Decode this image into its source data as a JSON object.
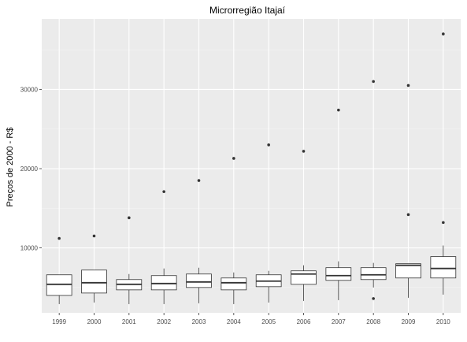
{
  "chart_data": {
    "type": "boxplot",
    "title": "Microrregião  Itajaí",
    "xlabel": "",
    "ylabel": "Preços de 2000 - R$",
    "categories": [
      "1999",
      "2000",
      "2001",
      "2002",
      "2003",
      "2004",
      "2005",
      "2006",
      "2007",
      "2008",
      "2009",
      "2010"
    ],
    "ylim": [
      1800,
      38900
    ],
    "yticks": [
      10000,
      20000,
      30000
    ],
    "ytick_labels": [
      "10000",
      "20000",
      "30000"
    ],
    "grid": true,
    "boxes": [
      {
        "x": "1999",
        "whisker_low": 2900,
        "q1": 4000,
        "median": 5400,
        "q3": 6600,
        "whisker_high": 6600,
        "outliers": [
          11200
        ]
      },
      {
        "x": "2000",
        "whisker_low": 3100,
        "q1": 4300,
        "median": 5600,
        "q3": 7200,
        "whisker_high": 7200,
        "outliers": [
          11500
        ]
      },
      {
        "x": "2001",
        "whisker_low": 2900,
        "q1": 4700,
        "median": 5400,
        "q3": 6000,
        "whisker_high": 6700,
        "outliers": [
          13800
        ]
      },
      {
        "x": "2002",
        "whisker_low": 2900,
        "q1": 4700,
        "median": 5500,
        "q3": 6500,
        "whisker_high": 7400,
        "outliers": [
          17100
        ]
      },
      {
        "x": "2003",
        "whisker_low": 3000,
        "q1": 5000,
        "median": 5700,
        "q3": 6700,
        "whisker_high": 7500,
        "outliers": [
          18500
        ]
      },
      {
        "x": "2004",
        "whisker_low": 2900,
        "q1": 4700,
        "median": 5600,
        "q3": 6200,
        "whisker_high": 6900,
        "outliers": [
          21300
        ]
      },
      {
        "x": "2005",
        "whisker_low": 3100,
        "q1": 5100,
        "median": 5800,
        "q3": 6600,
        "whisker_high": 7100,
        "outliers": [
          23000
        ]
      },
      {
        "x": "2006",
        "whisker_low": 3300,
        "q1": 5400,
        "median": 6700,
        "q3": 7100,
        "whisker_high": 7800,
        "outliers": [
          22200
        ]
      },
      {
        "x": "2007",
        "whisker_low": 3400,
        "q1": 5900,
        "median": 6500,
        "q3": 7500,
        "whisker_high": 8300,
        "outliers": [
          27400
        ]
      },
      {
        "x": "2008",
        "whisker_low": 5000,
        "q1": 6000,
        "median": 6600,
        "q3": 7500,
        "whisker_high": 8100,
        "outliers": [
          3600,
          31000
        ]
      },
      {
        "x": "2009",
        "whisker_low": 3700,
        "q1": 6200,
        "median": 7800,
        "q3": 8000,
        "whisker_high": 8000,
        "outliers": [
          14200,
          30500
        ]
      },
      {
        "x": "2010",
        "whisker_low": 4100,
        "q1": 6200,
        "median": 7400,
        "q3": 8900,
        "whisker_high": 10300,
        "outliers": [
          13200,
          37000
        ]
      }
    ],
    "colors": {
      "panel": "#ebebeb",
      "grid_major": "#ffffff",
      "box_fill": "#ffffff",
      "box_stroke": "#333333",
      "outlier": "#333333"
    }
  }
}
